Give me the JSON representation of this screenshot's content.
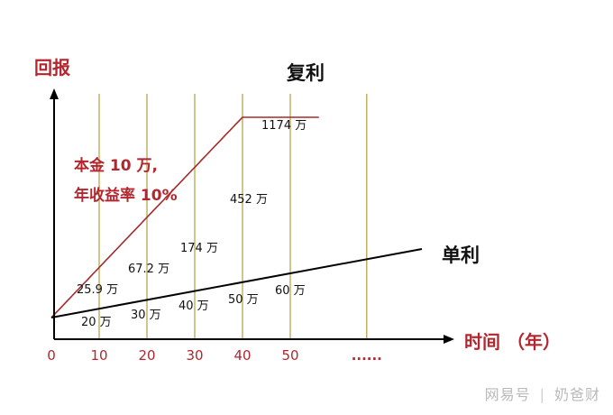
{
  "chart_data": {
    "type": "line",
    "title": "复利",
    "ylabel": "回报",
    "xlabel": "时间 （年）",
    "x_ticks": [
      "0",
      "10",
      "20",
      "30",
      "40",
      "50",
      "......"
    ],
    "xlim": [
      0,
      85
    ],
    "ylim": [
      0,
      1800
    ],
    "annotation": [
      "本金 10 万,",
      "年收益率 10%"
    ],
    "series": [
      {
        "name": "复利",
        "color": "#a52a2a",
        "x": [
          0,
          10,
          20,
          30,
          40,
          50
        ],
        "y": [
          10,
          25.9,
          67.2,
          174,
          452,
          1174
        ],
        "labels": [
          "",
          "25.9 万",
          "67.2 万",
          "174 万",
          "452 万",
          "1174 万"
        ]
      },
      {
        "name": "单利",
        "color": "#000000",
        "x": [
          0,
          10,
          20,
          30,
          40,
          50
        ],
        "y": [
          10,
          20,
          30,
          40,
          50,
          60
        ],
        "labels": [
          "",
          "20 万",
          "30 万",
          "40 万",
          "50 万",
          "60 万"
        ]
      }
    ]
  },
  "watermark": {
    "left": "网易号",
    "sep": "|",
    "right": "奶爸财"
  }
}
